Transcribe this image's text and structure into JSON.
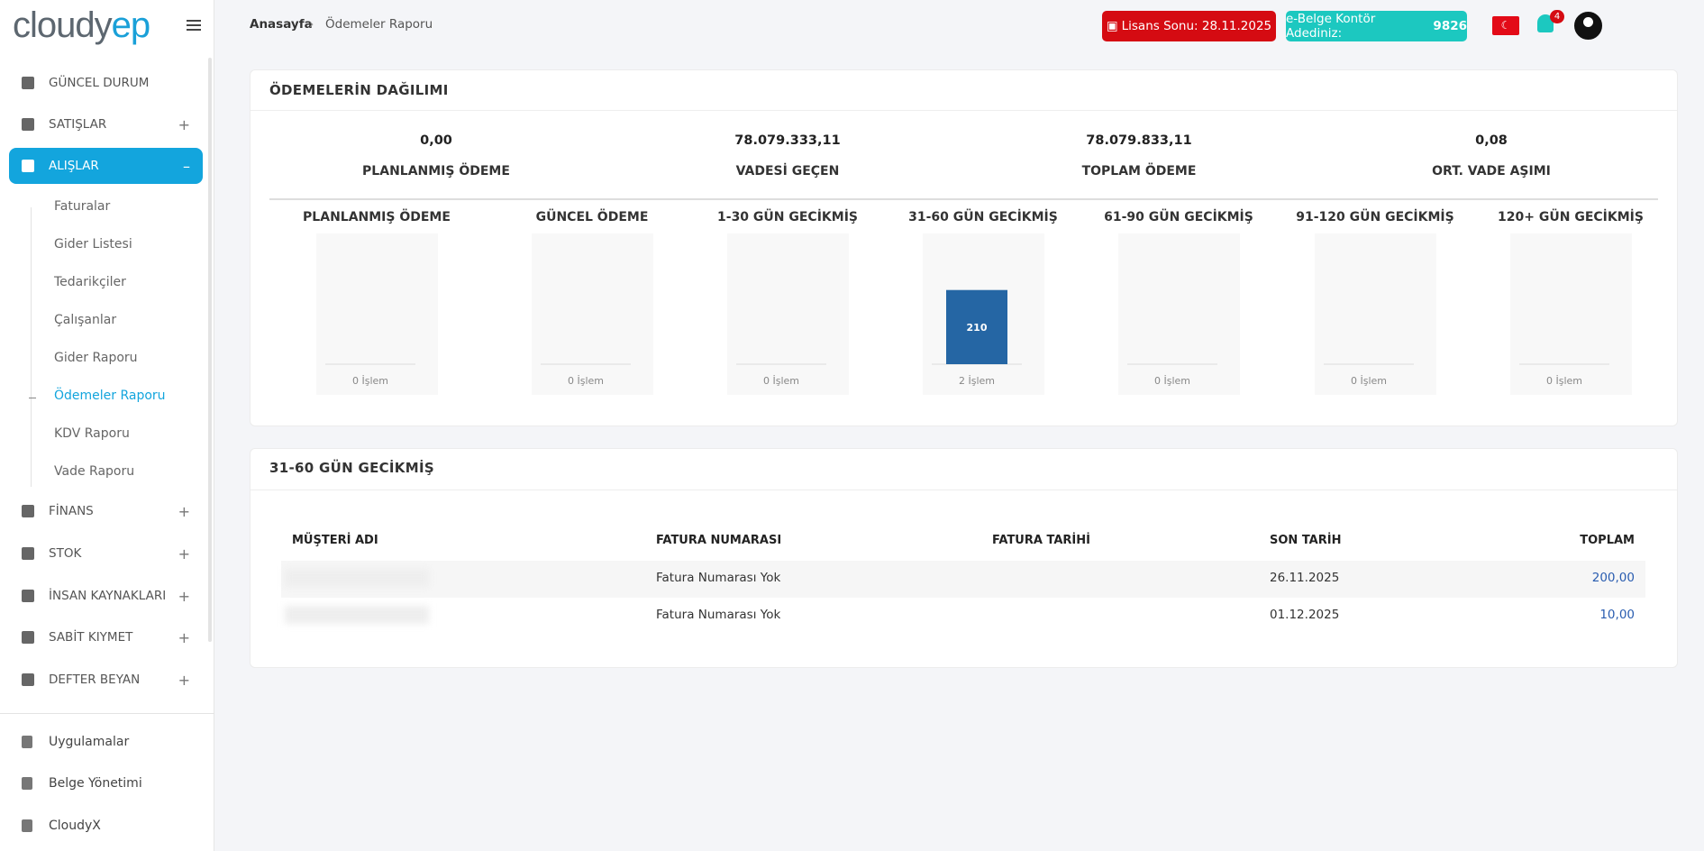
{
  "logo": "cloudyep",
  "sidebar": {
    "items": [
      {
        "label": "GÜNCEL DURUM"
      },
      {
        "label": "SATIŞLAR",
        "toggle": "+"
      },
      {
        "label": "ALIŞLAR",
        "toggle": "–"
      }
    ],
    "submenu": [
      "Faturalar",
      "Gider Listesi",
      "Tedarikçiler",
      "Çalışanlar",
      "Gider Raporu",
      "Ödemeler Raporu",
      "KDV Raporu",
      "Vade Raporu"
    ],
    "items2": [
      {
        "label": "FİNANS",
        "toggle": "+"
      },
      {
        "label": "STOK",
        "toggle": "+"
      },
      {
        "label": "İNSAN KAYNAKLARI",
        "toggle": "+"
      },
      {
        "label": "SABİT KIYMET",
        "toggle": "+"
      },
      {
        "label": "DEFTER BEYAN",
        "toggle": "+"
      }
    ],
    "footer": [
      "Uygulamalar",
      "Belge Yönetimi",
      "CloudyX"
    ]
  },
  "header": {
    "breadcrumb": [
      "Anasayfa",
      "Ödemeler Raporu"
    ],
    "license": "Lisans Sonu: 28.11.2025",
    "ebelge_label": "e-Belge Kontör Adediniz:",
    "ebelge_count": "9826",
    "notifications": "4"
  },
  "summary": {
    "title": "ÖDEMELERİN DAĞILIMI",
    "stats": [
      {
        "value": "0,00",
        "label": "PLANLANMIŞ ÖDEME"
      },
      {
        "value": "78.079.333,11",
        "label": "VADESİ GEÇEN"
      },
      {
        "value": "78.079.833,11",
        "label": "TOPLAM ÖDEME"
      },
      {
        "value": "0,08",
        "label": "ORT. VADE AŞIMI"
      }
    ]
  },
  "charts": [
    {
      "type": "bar",
      "title": "PLANLANMIŞ ÖDEME",
      "value": 0,
      "ylim": [
        0,
        370
      ],
      "count_label": "0 İşlem"
    },
    {
      "type": "bar",
      "title": "GÜNCEL ÖDEME",
      "value": 0,
      "ylim": [
        0,
        370
      ],
      "count_label": "0 İşlem"
    },
    {
      "type": "bar",
      "title": "1-30 GÜN GECİKMİŞ",
      "value": 0,
      "ylim": [
        0,
        370
      ],
      "count_label": "0 İşlem"
    },
    {
      "type": "bar",
      "title": "31-60 GÜN GECİKMİŞ",
      "value": 210,
      "ylim": [
        0,
        370
      ],
      "count_label": "2 İşlem"
    },
    {
      "type": "bar",
      "title": "61-90 GÜN GECİKMİŞ",
      "value": 0,
      "ylim": [
        0,
        370
      ],
      "count_label": "0 İşlem"
    },
    {
      "type": "bar",
      "title": "91-120 GÜN GECİKMİŞ",
      "value": 0,
      "ylim": [
        0,
        370
      ],
      "count_label": "0 İşlem"
    },
    {
      "type": "bar",
      "title": "120+ GÜN GECİKMİŞ",
      "value": 0,
      "ylim": [
        0,
        370
      ],
      "count_label": "0 İşlem"
    }
  ],
  "table": {
    "title": "31-60 GÜN GECİKMİŞ",
    "columns": [
      "MÜŞTERİ ADI",
      "FATURA NUMARASI",
      "FATURA TARİHİ",
      "SON TARİH",
      "TOPLAM"
    ],
    "rows": [
      {
        "invoice": "Fatura Numarası Yok",
        "due": "26.11.2025",
        "total": "200,00"
      },
      {
        "invoice": "Fatura Numarası Yok",
        "due": "01.12.2025",
        "total": "10,00"
      }
    ]
  }
}
